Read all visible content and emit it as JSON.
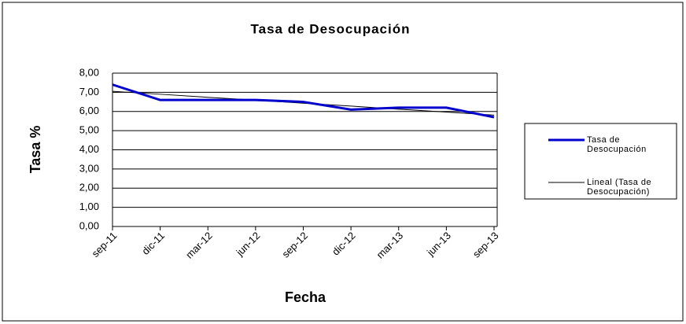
{
  "chart_data": {
    "type": "line",
    "title": "Tasa de Desocupación",
    "x_label": "Fecha",
    "y_label": "Tasa %",
    "categories": [
      "sep-11",
      "dic-11",
      "mar-12",
      "jun-12",
      "sep-12",
      "dic-12",
      "mar-13",
      "jun-13",
      "sep-13"
    ],
    "series": [
      {
        "name": "Tasa de Desocupación",
        "color": "#0000cc",
        "values": [
          7.4,
          6.6,
          6.6,
          6.6,
          6.5,
          6.1,
          6.2,
          6.2,
          5.7
        ]
      },
      {
        "name": "Lineal (Tasa de Desocupación)",
        "color": "#000000",
        "values": [
          7.05,
          6.9,
          6.74,
          6.59,
          6.43,
          6.28,
          6.12,
          5.97,
          5.81
        ]
      }
    ],
    "ylim": [
      0,
      8
    ],
    "yticks": [
      {
        "value": 0,
        "label": "0,00"
      },
      {
        "value": 1,
        "label": "1,00"
      },
      {
        "value": 2,
        "label": "2,00"
      },
      {
        "value": 3,
        "label": "3,00"
      },
      {
        "value": 4,
        "label": "4,00"
      },
      {
        "value": 5,
        "label": "5,00"
      },
      {
        "value": 6,
        "label": "6,00"
      },
      {
        "value": 7,
        "label": "7,00"
      },
      {
        "value": 8,
        "label": "8,00"
      }
    ],
    "grid": true,
    "legend": "right"
  }
}
